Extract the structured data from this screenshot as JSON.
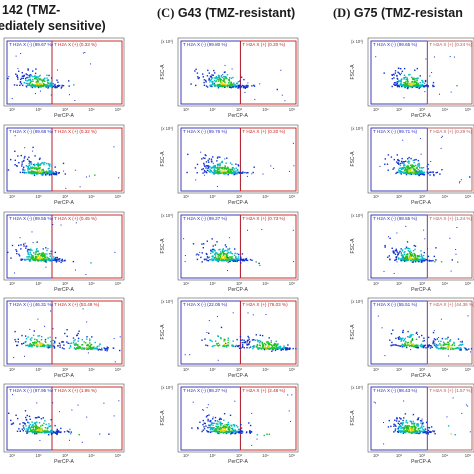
{
  "headers": {
    "b_line1": "142 (TMZ-",
    "b_line2": "ediately sensitive)",
    "c_letter": "(C)",
    "c_title": "G43 (TMZ-resistant)",
    "d_letter": "(D)",
    "d_title": "G75 (TMZ-resistan"
  },
  "axes": {
    "x_label": "PerCP-A",
    "y_label": "FSC-A",
    "y_multiplier": "(x 10³)"
  },
  "colors": {
    "gate_negative": "#2a2ab8",
    "gate_positive": "#c41c1c",
    "gate_positive_g75": "#b05555",
    "density_low": "#1030d0",
    "density_mid": "#00b8c8",
    "density_high": "#20c020",
    "density_peak": "#e8d000"
  },
  "panels": [
    {
      "id": "B",
      "rows": [
        {
          "neg_label": "T H2A X (-) (99.67 %)",
          "pos_label": "T H2A X (+) (0.33 %)",
          "positive_fraction": 0.0033
        },
        {
          "neg_label": "T H2A X (-) (99.68 %)",
          "pos_label": "T H2A X (+) (0.32 %)",
          "positive_fraction": 0.0032
        },
        {
          "neg_label": "T H2A X (-) (99.55 %)",
          "pos_label": "T H2A X (+) (0.45 %)",
          "positive_fraction": 0.0045
        },
        {
          "neg_label": "T H2A X (-) (46.31 %)",
          "pos_label": "T H2A X (+) (53.49 %)",
          "positive_fraction": 0.5349
        },
        {
          "neg_label": "T H2A X (-) (97.95 %)",
          "pos_label": "T H2A X (+) (1.95 %)",
          "positive_fraction": 0.0195
        }
      ]
    },
    {
      "id": "C",
      "rows": [
        {
          "neg_label": "T H2A X (-) (99.80 %)",
          "pos_label": "T H2A X (+) (0.20 %)",
          "positive_fraction": 0.002
        },
        {
          "neg_label": "T H2A X (-) (99.76 %)",
          "pos_label": "T H2A X (+) (0.20 %)",
          "positive_fraction": 0.002
        },
        {
          "neg_label": "T H2A X (-) (99.27 %)",
          "pos_label": "T H2A X (+) (0.73 %)",
          "positive_fraction": 0.0073
        },
        {
          "neg_label": "T H2A X (-) (22.05 %)",
          "pos_label": "T H2A X (+) (76.03 %)",
          "positive_fraction": 0.7603
        },
        {
          "neg_label": "T H2A X (-) (98.27 %)",
          "pos_label": "T H2A X (+) (2.48 %)",
          "positive_fraction": 0.0248
        }
      ]
    },
    {
      "id": "D",
      "rows": [
        {
          "neg_label": "T H2A X (-) (99.65 %)",
          "pos_label": "T H2A X (+) (0.24 %)",
          "positive_fraction": 0.0024
        },
        {
          "neg_label": "T H2A X (-) (99.71 %)",
          "pos_label": "T H2A X (+) (0.29 %)",
          "positive_fraction": 0.0029
        },
        {
          "neg_label": "T H2A X (-) (98.55 %)",
          "pos_label": "T H2A X (+) (1.24 %)",
          "positive_fraction": 0.0124
        },
        {
          "neg_label": "T H2A X (-) (55.51 %)",
          "pos_label": "T H2A X (+) (44.36 %)",
          "positive_fraction": 0.4436
        },
        {
          "neg_label": "T H2A X (-) (98.43 %)",
          "pos_label": "T H2A X (+) (1.57 %)",
          "positive_fraction": 0.0157
        }
      ]
    }
  ]
}
